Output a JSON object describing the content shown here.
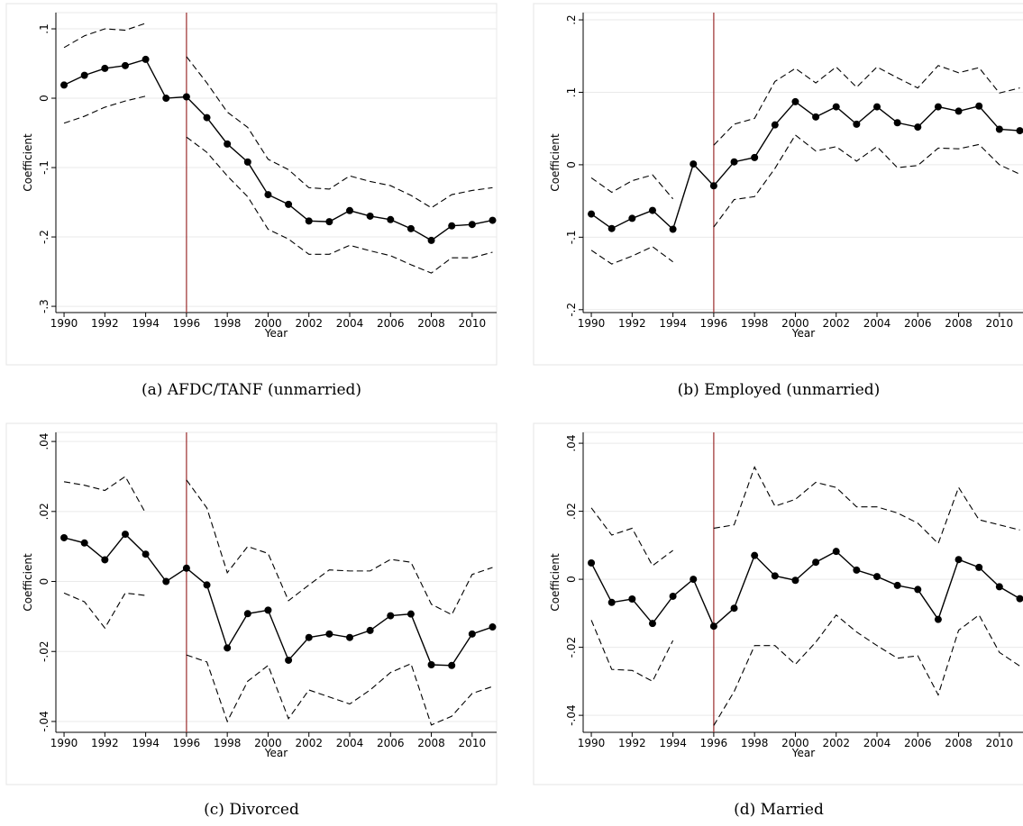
{
  "chart_data": [
    {
      "type": "line",
      "caption": "(a) AFDC/TANF (unmarried)",
      "x_label": "Year",
      "y_label": "Coefficient",
      "x": [
        1990,
        1991,
        1992,
        1993,
        1994,
        1995,
        1996,
        1997,
        1998,
        1999,
        2000,
        2001,
        2002,
        2003,
        2004,
        2005,
        2006,
        2007,
        2008,
        2009,
        2010,
        2011
      ],
      "xlim": [
        1989.6,
        2011.2
      ],
      "xticks": [
        1990,
        1992,
        1994,
        1996,
        1998,
        2000,
        2002,
        2004,
        2006,
        2008,
        2010
      ],
      "ylim": [
        -0.309,
        0.1234
      ],
      "yticks": [
        {
          "value": -0.3,
          "label": "-.3"
        },
        {
          "value": -0.2,
          "label": "-.2"
        },
        {
          "value": -0.1,
          "label": "-.1"
        },
        0,
        {
          "value": 0.1,
          "label": ".1"
        }
      ],
      "grid": true,
      "vline": 1996,
      "vline_color": "#a23b3b",
      "series": [
        {
          "color": "#000000",
          "style": "solid",
          "markers": true,
          "values": [
            0.019,
            0.033,
            0.043,
            0.047,
            0.056,
            0.0,
            0.002,
            -0.028,
            -0.066,
            -0.092,
            -0.139,
            -0.153,
            -0.177,
            -0.178,
            -0.162,
            -0.17,
            -0.175,
            -0.188,
            -0.205,
            -0.184,
            -0.182,
            -0.176
          ]
        },
        {
          "color": "#000000",
          "style": "dashed",
          "markers": false,
          "values": [
            0.073,
            0.09,
            0.1,
            0.098,
            0.108,
            null,
            0.06,
            0.022,
            -0.02,
            -0.042,
            -0.088,
            -0.103,
            -0.129,
            -0.131,
            -0.112,
            -0.12,
            -0.126,
            -0.14,
            -0.158,
            -0.139,
            -0.133,
            -0.129
          ]
        },
        {
          "color": "#000000",
          "style": "dashed",
          "markers": false,
          "values": [
            -0.036,
            -0.026,
            -0.013,
            -0.004,
            0.003,
            null,
            -0.056,
            -0.078,
            -0.112,
            -0.142,
            -0.189,
            -0.203,
            -0.225,
            -0.225,
            -0.212,
            -0.22,
            -0.227,
            -0.24,
            -0.252,
            -0.23,
            -0.23,
            -0.222
          ]
        }
      ]
    },
    {
      "type": "line",
      "caption": "(b) Employed (unmarried)",
      "x_label": "Year",
      "y_label": "Coefficient",
      "x": [
        1990,
        1991,
        1992,
        1993,
        1994,
        1995,
        1996,
        1997,
        1998,
        1999,
        2000,
        2001,
        2002,
        2003,
        2004,
        2005,
        2006,
        2007,
        2008,
        2009,
        2010,
        2011
      ],
      "xlim": [
        1989.6,
        2011.2
      ],
      "xticks": [
        1990,
        1992,
        1994,
        1996,
        1998,
        2000,
        2002,
        2004,
        2006,
        2008,
        2010
      ],
      "ylim": [
        -0.204,
        0.21
      ],
      "yticks": [
        {
          "value": -0.2,
          "label": "-.2"
        },
        {
          "value": -0.1,
          "label": "-.1"
        },
        0,
        {
          "value": 0.1,
          "label": ".1"
        },
        {
          "value": 0.2,
          "label": ".2"
        }
      ],
      "grid": true,
      "vline": 1996,
      "vline_color": "#a23b3b",
      "series": [
        {
          "color": "#000000",
          "style": "solid",
          "markers": true,
          "values": [
            -0.068,
            -0.088,
            -0.074,
            -0.063,
            -0.089,
            0.001,
            -0.029,
            0.004,
            0.01,
            0.055,
            0.087,
            0.066,
            0.08,
            0.056,
            0.08,
            0.058,
            0.052,
            0.08,
            0.074,
            0.081,
            0.049,
            0.047
          ]
        },
        {
          "color": "#000000",
          "style": "dashed",
          "markers": false,
          "values": [
            -0.018,
            -0.038,
            -0.022,
            -0.014,
            -0.047,
            null,
            0.027,
            0.056,
            0.064,
            0.115,
            0.133,
            0.113,
            0.135,
            0.107,
            0.135,
            0.12,
            0.106,
            0.137,
            0.127,
            0.134,
            0.099,
            0.106
          ]
        },
        {
          "color": "#000000",
          "style": "dashed",
          "markers": false,
          "values": [
            -0.118,
            -0.137,
            -0.126,
            -0.113,
            -0.134,
            null,
            -0.086,
            -0.048,
            -0.044,
            -0.005,
            0.041,
            0.019,
            0.025,
            0.005,
            0.025,
            -0.004,
            -0.001,
            0.023,
            0.022,
            0.028,
            0.0,
            -0.013
          ]
        }
      ]
    },
    {
      "type": "line",
      "caption": "(c) Divorced",
      "x_label": "Year",
      "y_label": "Coefficient",
      "x": [
        1990,
        1991,
        1992,
        1993,
        1994,
        1995,
        1996,
        1997,
        1998,
        1999,
        2000,
        2001,
        2002,
        2003,
        2004,
        2005,
        2006,
        2007,
        2008,
        2009,
        2010,
        2011
      ],
      "xlim": [
        1989.6,
        2011.2
      ],
      "xticks": [
        1990,
        1992,
        1994,
        1996,
        1998,
        2000,
        2002,
        2004,
        2006,
        2008,
        2010
      ],
      "ylim": [
        -0.0431,
        0.0426
      ],
      "yticks": [
        {
          "value": -0.04,
          "label": "-.04"
        },
        {
          "value": -0.02,
          "label": "-.02"
        },
        0,
        {
          "value": 0.02,
          "label": ".02"
        },
        {
          "value": 0.04,
          "label": ".04"
        }
      ],
      "grid": true,
      "vline": 1996,
      "vline_color": "#a23b3b",
      "series": [
        {
          "color": "#000000",
          "style": "solid",
          "markers": true,
          "values": [
            0.0125,
            0.011,
            0.0062,
            0.0135,
            0.0078,
            0.0,
            0.0038,
            -0.001,
            -0.019,
            -0.0092,
            -0.0082,
            -0.0225,
            -0.016,
            -0.015,
            -0.016,
            -0.014,
            -0.0098,
            -0.0093,
            -0.0238,
            -0.024,
            -0.015,
            -0.013
          ]
        },
        {
          "color": "#000000",
          "style": "dashed",
          "markers": false,
          "values": [
            0.0285,
            0.0275,
            0.026,
            0.03,
            0.0195,
            null,
            0.029,
            0.021,
            0.0025,
            0.01,
            0.008,
            -0.0055,
            -0.001,
            0.0033,
            0.003,
            0.003,
            0.0063,
            0.0055,
            -0.0065,
            -0.0095,
            0.002,
            0.004
          ]
        },
        {
          "color": "#000000",
          "style": "dashed",
          "markers": false,
          "values": [
            -0.0033,
            -0.0058,
            -0.0133,
            -0.0033,
            -0.004,
            null,
            -0.021,
            -0.023,
            -0.04,
            -0.0285,
            -0.024,
            -0.0392,
            -0.031,
            -0.033,
            -0.035,
            -0.031,
            -0.026,
            -0.0235,
            -0.041,
            -0.0385,
            -0.032,
            -0.03
          ]
        }
      ]
    },
    {
      "type": "line",
      "caption": "(d) Married",
      "x_label": "Year",
      "y_label": "Coefficient",
      "x": [
        1990,
        1991,
        1992,
        1993,
        1994,
        1995,
        1996,
        1997,
        1998,
        1999,
        2000,
        2001,
        2002,
        2003,
        2004,
        2005,
        2006,
        2007,
        2008,
        2009,
        2010,
        2011
      ],
      "xlim": [
        1989.6,
        2011.2
      ],
      "xticks": [
        1990,
        1992,
        1994,
        1996,
        1998,
        2000,
        2002,
        2004,
        2006,
        2008,
        2010
      ],
      "ylim": [
        -0.045,
        0.0432
      ],
      "yticks": [
        {
          "value": -0.04,
          "label": "-.04"
        },
        {
          "value": -0.02,
          "label": "-.02"
        },
        0,
        {
          "value": 0.02,
          "label": ".02"
        },
        {
          "value": 0.04,
          "label": ".04"
        }
      ],
      "grid": true,
      "vline": 1996,
      "vline_color": "#a23b3b",
      "series": [
        {
          "color": "#000000",
          "style": "solid",
          "markers": true,
          "values": [
            0.0048,
            -0.0068,
            -0.0058,
            -0.013,
            -0.005,
            0.0,
            -0.0138,
            -0.0085,
            0.007,
            0.001,
            -0.0003,
            0.005,
            0.0082,
            0.0027,
            0.0008,
            -0.0018,
            -0.003,
            -0.0118,
            0.0058,
            0.0035,
            -0.0022,
            -0.0057
          ]
        },
        {
          "color": "#000000",
          "style": "dashed",
          "markers": false,
          "values": [
            0.021,
            0.013,
            0.015,
            0.004,
            0.0085,
            null,
            0.015,
            0.016,
            0.033,
            0.0215,
            0.0235,
            0.0285,
            0.027,
            0.0213,
            0.0213,
            0.0195,
            0.0165,
            0.0105,
            0.027,
            0.0175,
            0.016,
            0.0145
          ]
        },
        {
          "color": "#000000",
          "style": "dashed",
          "markers": false,
          "values": [
            -0.012,
            -0.0265,
            -0.0268,
            -0.03,
            -0.018,
            null,
            -0.043,
            -0.033,
            -0.0195,
            -0.0195,
            -0.025,
            -0.0185,
            -0.0105,
            -0.0155,
            -0.0195,
            -0.0232,
            -0.0225,
            -0.034,
            -0.015,
            -0.0105,
            -0.0215,
            -0.0255
          ]
        }
      ]
    }
  ]
}
